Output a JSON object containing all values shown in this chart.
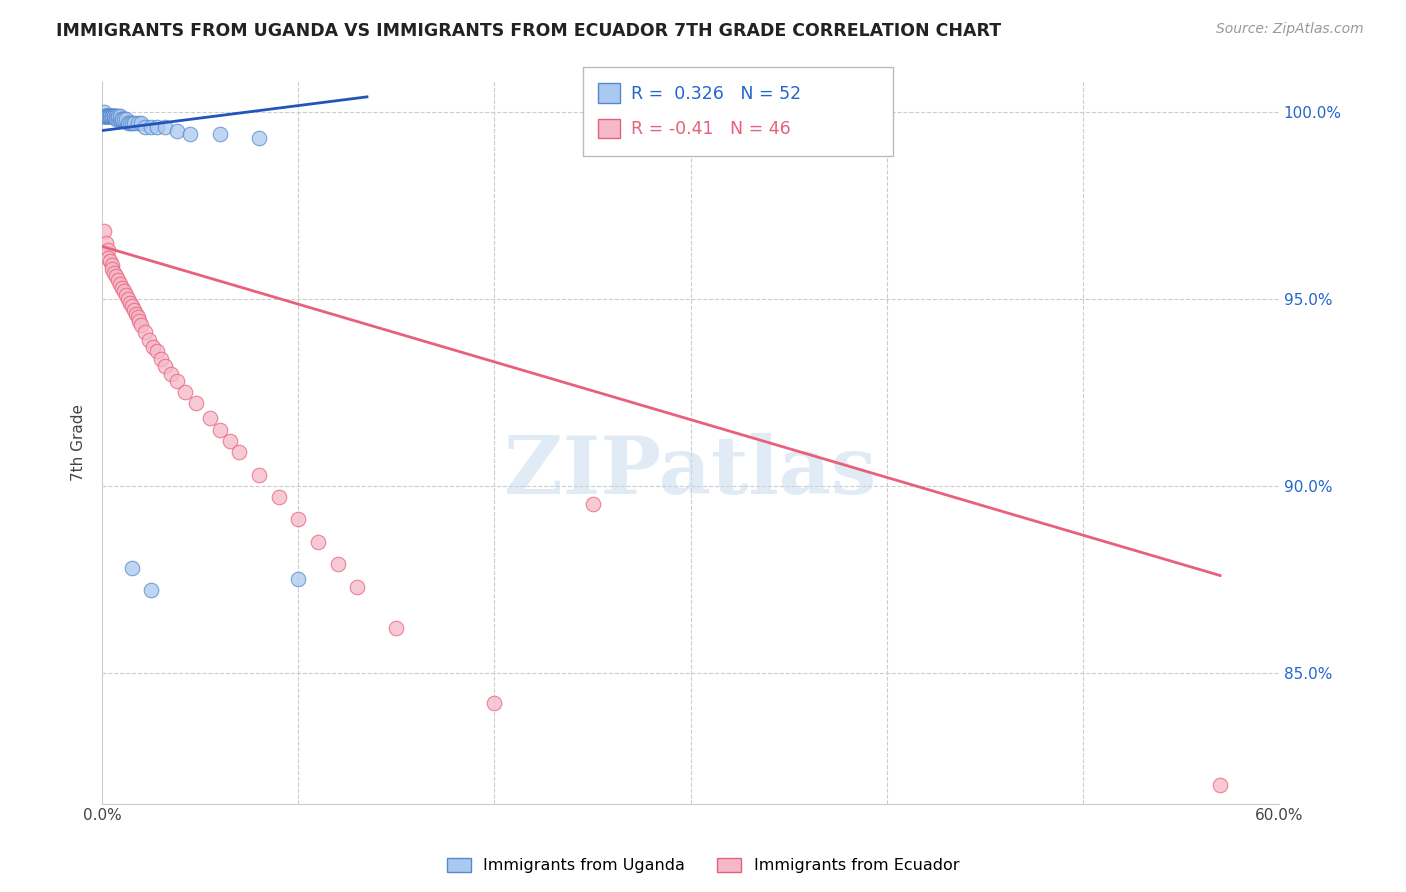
{
  "title": "IMMIGRANTS FROM UGANDA VS IMMIGRANTS FROM ECUADOR 7TH GRADE CORRELATION CHART",
  "source": "Source: ZipAtlas.com",
  "xlabel_label": "Immigrants from Uganda",
  "ylabel_label": "7th Grade",
  "xlabel2_label": "Immigrants from Ecuador",
  "xlim": [
    0.0,
    0.6
  ],
  "ylim": [
    0.815,
    1.008
  ],
  "blue_R": 0.326,
  "blue_N": 52,
  "pink_R": -0.41,
  "pink_N": 46,
  "blue_color": "#aac9f0",
  "pink_color": "#f5b8c8",
  "blue_edge_color": "#5588cc",
  "pink_edge_color": "#e8607a",
  "blue_line_color": "#2255BB",
  "pink_line_color": "#e8607a",
  "legend_blue_color": "#2266CC",
  "legend_pink_color": "#e8607a",
  "watermark": "ZIPatlas",
  "blue_x": [
    0.001,
    0.001,
    0.001,
    0.001,
    0.001,
    0.002,
    0.002,
    0.002,
    0.002,
    0.003,
    0.003,
    0.003,
    0.003,
    0.004,
    0.004,
    0.004,
    0.004,
    0.005,
    0.005,
    0.005,
    0.005,
    0.006,
    0.006,
    0.006,
    0.007,
    0.007,
    0.007,
    0.008,
    0.008,
    0.009,
    0.009,
    0.01,
    0.01,
    0.011,
    0.012,
    0.013,
    0.014,
    0.015,
    0.016,
    0.018,
    0.02,
    0.022,
    0.025,
    0.028,
    0.032,
    0.038,
    0.045,
    0.06,
    0.08,
    0.1,
    0.015,
    0.025
  ],
  "blue_y": [
    0.999,
    0.999,
    0.999,
    0.999,
    1.0,
    0.999,
    0.999,
    0.999,
    0.999,
    0.999,
    0.999,
    0.999,
    0.999,
    0.999,
    0.999,
    0.999,
    0.999,
    0.999,
    0.999,
    0.999,
    0.999,
    0.999,
    0.999,
    0.999,
    0.999,
    0.999,
    0.998,
    0.998,
    0.999,
    0.998,
    0.999,
    0.998,
    0.998,
    0.998,
    0.998,
    0.997,
    0.997,
    0.997,
    0.997,
    0.997,
    0.997,
    0.996,
    0.996,
    0.996,
    0.996,
    0.995,
    0.994,
    0.994,
    0.993,
    0.875,
    0.878,
    0.872
  ],
  "pink_x": [
    0.001,
    0.002,
    0.003,
    0.003,
    0.004,
    0.005,
    0.005,
    0.006,
    0.007,
    0.008,
    0.009,
    0.01,
    0.011,
    0.012,
    0.013,
    0.014,
    0.015,
    0.016,
    0.017,
    0.018,
    0.019,
    0.02,
    0.022,
    0.024,
    0.026,
    0.028,
    0.03,
    0.032,
    0.035,
    0.038,
    0.042,
    0.048,
    0.055,
    0.06,
    0.065,
    0.07,
    0.08,
    0.09,
    0.1,
    0.11,
    0.12,
    0.13,
    0.15,
    0.2,
    0.25,
    0.57
  ],
  "pink_y": [
    0.968,
    0.965,
    0.963,
    0.961,
    0.96,
    0.959,
    0.958,
    0.957,
    0.956,
    0.955,
    0.954,
    0.953,
    0.952,
    0.951,
    0.95,
    0.949,
    0.948,
    0.947,
    0.946,
    0.945,
    0.944,
    0.943,
    0.941,
    0.939,
    0.937,
    0.936,
    0.934,
    0.932,
    0.93,
    0.928,
    0.925,
    0.922,
    0.918,
    0.915,
    0.912,
    0.909,
    0.903,
    0.897,
    0.891,
    0.885,
    0.879,
    0.873,
    0.862,
    0.842,
    0.895,
    0.82
  ],
  "blue_trend_x": [
    0.0,
    0.135
  ],
  "blue_trend_y": [
    0.995,
    1.004
  ],
  "pink_trend_x": [
    0.0,
    0.57
  ],
  "pink_trend_y": [
    0.964,
    0.876
  ]
}
